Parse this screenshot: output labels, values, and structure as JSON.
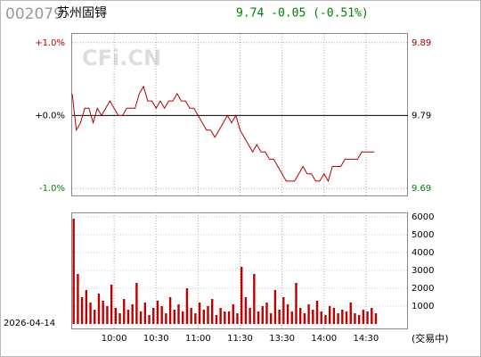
{
  "header": {
    "code": "002079",
    "name": "苏州固锝",
    "quote": "9.74 -0.05 (-0.51%)"
  },
  "watermark": "CFi.CN",
  "date": "2026-04-14",
  "status": "(交易中)",
  "chart_data": [
    {
      "type": "line",
      "xlim": [
        0,
        240
      ],
      "x": [
        0,
        3,
        6,
        9,
        12,
        15,
        18,
        21,
        24,
        27,
        30,
        33,
        36,
        39,
        42,
        45,
        48,
        51,
        54,
        57,
        60,
        63,
        66,
        69,
        72,
        75,
        78,
        81,
        84,
        87,
        90,
        93,
        96,
        99,
        102,
        105,
        108,
        111,
        114,
        117,
        120,
        123,
        126,
        129,
        132,
        135,
        138,
        141,
        144,
        147,
        150,
        153,
        156,
        159,
        162,
        165,
        168,
        171,
        174,
        177,
        180,
        183,
        186,
        189,
        192,
        195,
        198,
        201,
        204,
        207,
        210,
        213,
        216
      ],
      "series": [
        {
          "color": "#b00000",
          "axis": "y2",
          "values": [
            9.82,
            9.77,
            9.78,
            9.8,
            9.8,
            9.78,
            9.8,
            9.79,
            9.8,
            9.81,
            9.8,
            9.79,
            9.79,
            9.8,
            9.8,
            9.8,
            9.82,
            9.83,
            9.81,
            9.81,
            9.8,
            9.81,
            9.8,
            9.81,
            9.81,
            9.82,
            9.81,
            9.81,
            9.8,
            9.8,
            9.79,
            9.78,
            9.77,
            9.77,
            9.76,
            9.77,
            9.78,
            9.79,
            9.78,
            9.79,
            9.77,
            9.76,
            9.75,
            9.74,
            9.75,
            9.74,
            9.74,
            9.73,
            9.73,
            9.72,
            9.71,
            9.7,
            9.7,
            9.7,
            9.71,
            9.72,
            9.71,
            9.71,
            9.7,
            9.7,
            9.71,
            9.7,
            9.72,
            9.72,
            9.72,
            9.73,
            9.73,
            9.73,
            9.73,
            9.74,
            9.74,
            9.74,
            9.74
          ]
        }
      ],
      "ylim": [
        -1.11,
        1.12
      ],
      "yticks": [
        {
          "value": 1,
          "label": "+1.0%"
        },
        {
          "value": 0,
          "label": "+0.0%"
        },
        {
          "value": -1,
          "label": "-1.0%"
        }
      ],
      "ytick_colors": [
        "#c00000",
        "#000000",
        "#008000"
      ],
      "y2lim": [
        9.679,
        9.902
      ],
      "y2ticks": [
        9.89,
        9.79,
        9.69
      ],
      "y2tick_colors": [
        "#a00000",
        "#000000",
        "#008000"
      ]
    },
    {
      "type": "bar",
      "xlim": [
        0,
        240
      ],
      "x": [
        0,
        3,
        6,
        9,
        12,
        15,
        18,
        21,
        24,
        27,
        30,
        33,
        36,
        39,
        42,
        45,
        48,
        51,
        54,
        57,
        60,
        63,
        66,
        69,
        72,
        75,
        78,
        81,
        84,
        87,
        90,
        93,
        96,
        99,
        102,
        105,
        108,
        111,
        114,
        117,
        120,
        123,
        126,
        129,
        132,
        135,
        138,
        141,
        144,
        147,
        150,
        153,
        156,
        159,
        162,
        165,
        168,
        171,
        174,
        177,
        180,
        183,
        186,
        189,
        192,
        195,
        198,
        201,
        204,
        207,
        210,
        213,
        216
      ],
      "values": [
        5900,
        2800,
        1500,
        1900,
        1200,
        800,
        1700,
        1300,
        1000,
        2200,
        900,
        600,
        1400,
        800,
        1100,
        2300,
        700,
        1200,
        500,
        900,
        1300,
        1000,
        600,
        1500,
        800,
        1100,
        700,
        2000,
        900,
        600,
        1200,
        800,
        1000,
        1400,
        500,
        900,
        700,
        700,
        1100,
        600,
        3200,
        1500,
        900,
        2800,
        700,
        1000,
        1200,
        600,
        1900,
        800,
        1500,
        1100,
        700,
        2300,
        900,
        600,
        1100,
        800,
        1300,
        700,
        500,
        1000,
        900,
        600,
        800,
        700,
        1200,
        600,
        500,
        800,
        700,
        900,
        600
      ],
      "color": "#c00000",
      "ylim": [
        -250,
        6250
      ],
      "yticks": [
        6000,
        5000,
        4000,
        3000,
        2000,
        1000
      ],
      "xticks": [
        {
          "value": 30,
          "label": "10:00"
        },
        {
          "value": 60,
          "label": "10:30"
        },
        {
          "value": 90,
          "label": "11:00"
        },
        {
          "value": 120,
          "label": "11:30"
        },
        {
          "value": 150,
          "label": "13:30"
        },
        {
          "value": 180,
          "label": "14:00"
        },
        {
          "value": 210,
          "label": "14:30"
        }
      ]
    }
  ]
}
